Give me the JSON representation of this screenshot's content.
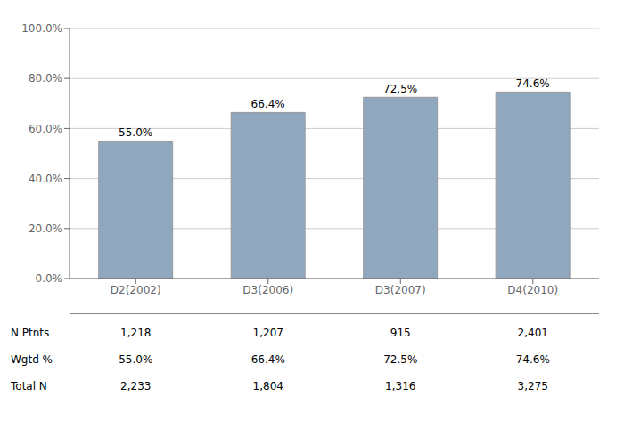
{
  "chart_data": {
    "type": "bar",
    "categories": [
      "D2(2002)",
      "D3(2006)",
      "D3(2007)",
      "D4(2010)"
    ],
    "values": [
      55.0,
      66.4,
      72.5,
      74.6
    ],
    "value_labels": [
      "55.0%",
      "66.4%",
      "72.5%",
      "74.6%"
    ],
    "data_labels": true,
    "color": "#8fa8bf",
    "ylim": [
      0,
      100
    ],
    "yticks": [
      {
        "value": 0,
        "label": "0.0%"
      },
      {
        "value": 20,
        "label": "20.0%"
      },
      {
        "value": 40,
        "label": "40.0%"
      },
      {
        "value": 60,
        "label": "60.0%"
      },
      {
        "value": 80,
        "label": "80.0%"
      },
      {
        "value": 100,
        "label": "100.0%"
      }
    ],
    "grid": true,
    "table": [
      {
        "label": "N Ptnts",
        "values": [
          "1,218",
          "1,207",
          "915",
          "2,401"
        ]
      },
      {
        "label": "Wgtd %",
        "values": [
          "55.0%",
          "66.4%",
          "72.5%",
          "74.6%"
        ]
      },
      {
        "label": "Total N",
        "values": [
          "2,233",
          "1,804",
          "1,316",
          "3,275"
        ]
      }
    ]
  }
}
